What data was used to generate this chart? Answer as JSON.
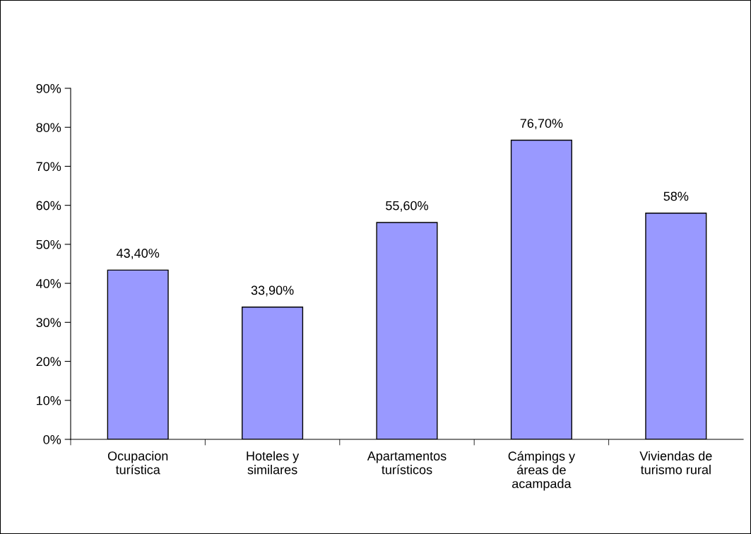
{
  "chart_data": {
    "type": "bar",
    "categories": [
      "Ocupacion\nturística",
      "Hoteles y\nsimilares",
      "Apartamentos\nturísticos",
      "Cámpings y\náreas de\nacampada",
      "Viviendas de\nturismo rural"
    ],
    "values": [
      43.4,
      33.9,
      55.6,
      76.7,
      58
    ],
    "value_labels": [
      "43,40%",
      "33,90%",
      "55,60%",
      "76,70%",
      "58%"
    ],
    "color": "#9999ff",
    "ylim": [
      0,
      90
    ],
    "yticks": [
      {
        "value": 0,
        "label": "0%"
      },
      {
        "value": 10,
        "label": "10%"
      },
      {
        "value": 20,
        "label": "20%"
      },
      {
        "value": 30,
        "label": "30%"
      },
      {
        "value": 40,
        "label": "40%"
      },
      {
        "value": 50,
        "label": "50%"
      },
      {
        "value": 60,
        "label": "60%"
      },
      {
        "value": 70,
        "label": "70%"
      },
      {
        "value": 80,
        "label": "80%"
      },
      {
        "value": 90,
        "label": "90%"
      }
    ],
    "grid": false,
    "legend": false
  }
}
